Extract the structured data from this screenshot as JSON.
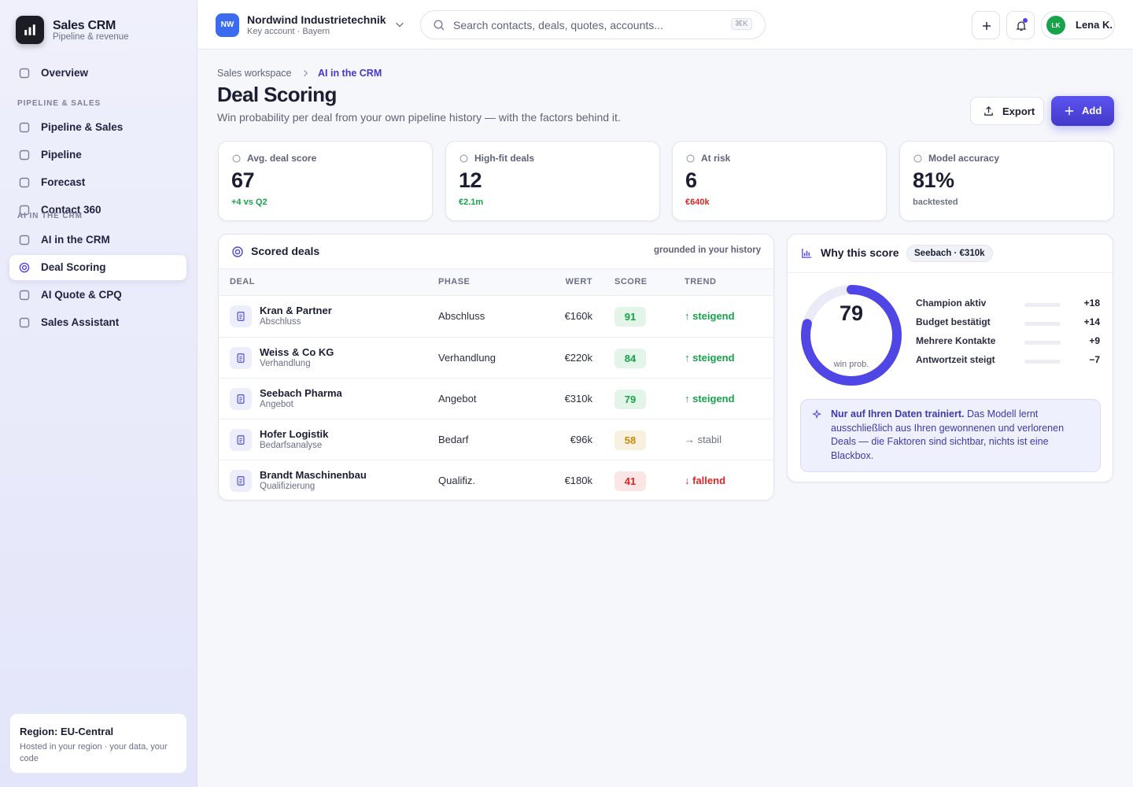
{
  "sidebar": {
    "brand": {
      "name": "Sales CRM",
      "sub": "Pipeline & revenue"
    },
    "nav": [
      {
        "label": "Overview"
      }
    ],
    "sections": [
      {
        "title": "PIPELINE & SALES",
        "items": [
          {
            "label": "Pipeline & Sales"
          },
          {
            "label": "Pipeline"
          },
          {
            "label": "Forecast"
          },
          {
            "label": "Contact 360"
          }
        ]
      },
      {
        "title": "AI IN THE CRM",
        "items": [
          {
            "label": "AI in the CRM"
          },
          {
            "label": "Deal Scoring",
            "active": true
          },
          {
            "label": "AI Quote & CPQ"
          },
          {
            "label": "Sales Assistant"
          }
        ]
      }
    ],
    "footer": {
      "title": "Region: EU-Central",
      "text": "Hosted in your region · your data, your code"
    }
  },
  "topbar": {
    "account": {
      "initials": "NW",
      "name": "Nordwind Industrietechnik",
      "sub": "Key account · Bayern"
    },
    "search": {
      "placeholder": "Search contacts, deals, quotes, accounts...",
      "shortcut": "⌘K"
    },
    "user": {
      "initials": "LK",
      "name": "Lena K."
    }
  },
  "header": {
    "breadcrumb": [
      "Sales workspace",
      "AI in the CRM"
    ],
    "title": "Deal Scoring",
    "subtitle": "Win probability per deal from your own pipeline history — with the factors behind it.",
    "buttons": [
      "Export",
      "Add"
    ]
  },
  "kpis": [
    {
      "label": "Avg. deal score",
      "value": "67",
      "note": "+4 vs Q2",
      "note_color": "#16a34a"
    },
    {
      "label": "High-fit deals",
      "value": "12",
      "note": "€2.1m",
      "note_color": "#16a34a"
    },
    {
      "label": "At risk",
      "value": "6",
      "note": "€640k",
      "note_color": "#dc2626"
    },
    {
      "label": "Model accuracy",
      "value": "81%",
      "note": "backtested",
      "note_color": "#6b7280"
    }
  ],
  "table": {
    "title": "Scored deals",
    "note": "grounded in your history",
    "columns": [
      "DEAL",
      "PHASE",
      "WERT",
      "SCORE",
      "TREND"
    ],
    "rows": [
      {
        "name": "Kran & Partner",
        "sub": "Abschluss",
        "phase": "Abschluss",
        "value": "€160k",
        "score": "91",
        "trend": "↑ steigend",
        "score_color": "#16a34a",
        "trend_color": "#16a34a"
      },
      {
        "name": "Weiss & Co KG",
        "sub": "Verhandlung",
        "phase": "Verhandlung",
        "value": "€220k",
        "score": "84",
        "trend": "↑ steigend",
        "score_color": "#16a34a",
        "trend_color": "#16a34a"
      },
      {
        "name": "Seebach Pharma",
        "sub": "Angebot",
        "phase": "Angebot",
        "value": "€310k",
        "score": "79",
        "trend": "↑ steigend",
        "score_color": "#16a34a",
        "trend_color": "#16a34a"
      },
      {
        "name": "Hofer Logistik",
        "sub": "Bedarfsanalyse",
        "phase": "Bedarf",
        "value": "€96k",
        "score": "58",
        "trend": "→ stabil",
        "score_color": "#ca8a04",
        "trend_color": "#6b7280"
      },
      {
        "name": "Brandt Maschinenbau",
        "sub": "Qualifizierung",
        "phase": "Qualifiz.",
        "value": "€180k",
        "score": "41",
        "trend": "↓ fallend",
        "score_color": "#dc2626",
        "trend_color": "#dc2626"
      }
    ]
  },
  "why": {
    "title": "Why this score",
    "chip": "Seebach · €310k",
    "gauge": {
      "value": 79,
      "range": [
        0,
        100
      ],
      "label": "win prob.",
      "color": "#4f46e5"
    },
    "factors": [
      {
        "label": "Champion aktiv",
        "value": "+18"
      },
      {
        "label": "Budget bestätigt",
        "value": "+14"
      },
      {
        "label": "Mehrere Kontakte",
        "value": "+9"
      },
      {
        "label": "Antwortzeit steigt",
        "value": "−7"
      }
    ],
    "note": {
      "bold": "Nur auf Ihren Daten trainiert.",
      "text": "Das Modell lernt ausschließlich aus Ihren gewonnenen und verlorenen Deals — die Faktoren sind sichtbar, nichts ist eine Blackbox."
    }
  }
}
